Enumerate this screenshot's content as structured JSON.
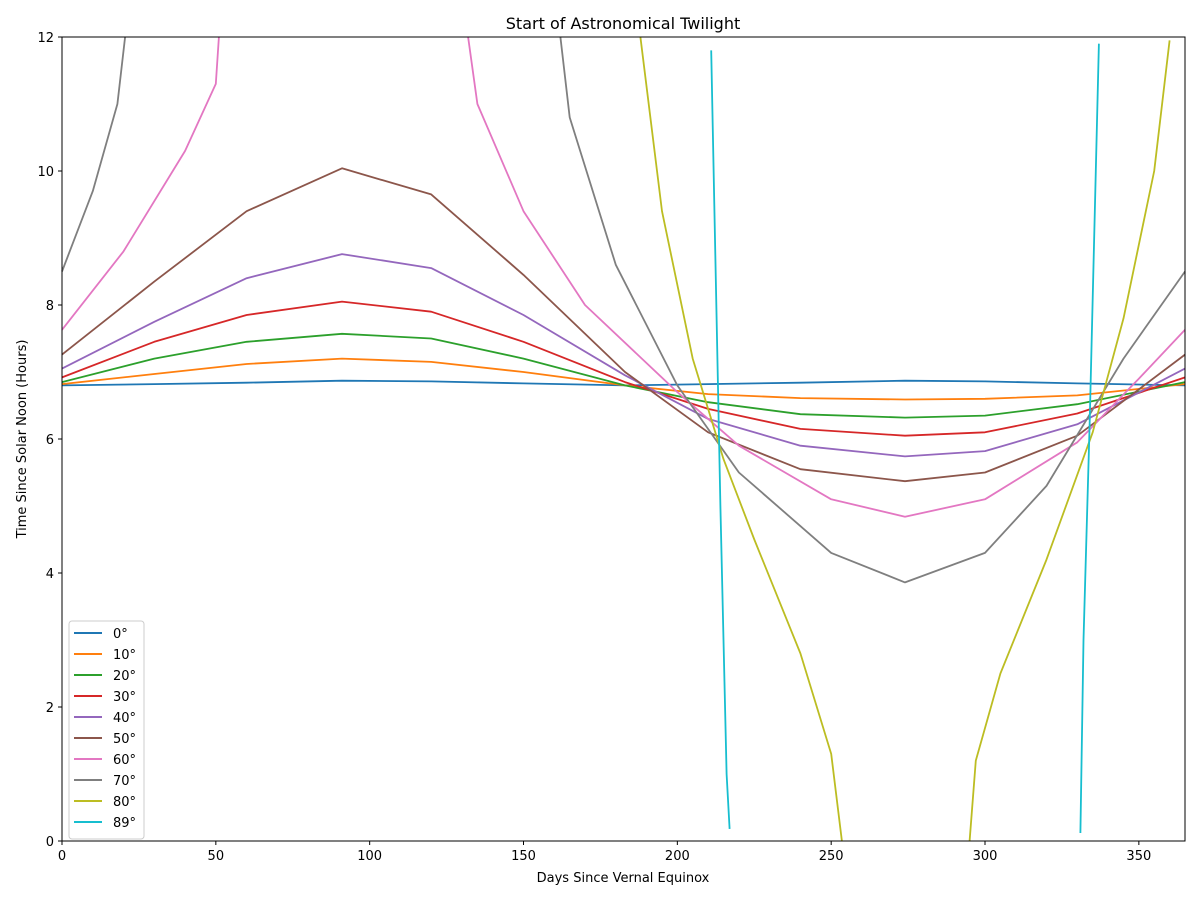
{
  "chart_data": {
    "type": "line",
    "title": "Start of Astronomical Twilight",
    "xlabel": "Days Since Vernal Equinox",
    "ylabel": "Time Since Solar Noon (Hours)",
    "xlim": [
      0,
      365
    ],
    "ylim": [
      0,
      12
    ],
    "x_ticks": [
      0,
      50,
      100,
      150,
      200,
      250,
      300,
      350
    ],
    "y_ticks": [
      0,
      2,
      4,
      6,
      8,
      10,
      12
    ],
    "grid": false,
    "legend_position": "lower-left",
    "series": [
      {
        "name": "0°",
        "color": "#1f77b4",
        "x": [
          0,
          30,
          60,
          91,
          120,
          150,
          183,
          210,
          240,
          274,
          300,
          330,
          365
        ],
        "y": [
          6.8,
          6.82,
          6.84,
          6.87,
          6.86,
          6.83,
          6.8,
          6.82,
          6.84,
          6.87,
          6.86,
          6.83,
          6.8
        ]
      },
      {
        "name": "10°",
        "color": "#ff7f0e",
        "x": [
          0,
          30,
          60,
          91,
          120,
          150,
          183,
          210,
          240,
          274,
          300,
          330,
          365
        ],
        "y": [
          6.82,
          6.97,
          7.12,
          7.2,
          7.15,
          7.0,
          6.8,
          6.67,
          6.61,
          6.59,
          6.6,
          6.65,
          6.82
        ]
      },
      {
        "name": "20°",
        "color": "#2ca02c",
        "x": [
          0,
          30,
          60,
          91,
          120,
          150,
          183,
          210,
          240,
          274,
          300,
          330,
          365
        ],
        "y": [
          6.85,
          7.2,
          7.45,
          7.57,
          7.5,
          7.2,
          6.8,
          6.55,
          6.37,
          6.32,
          6.35,
          6.52,
          6.85
        ]
      },
      {
        "name": "30°",
        "color": "#d62728",
        "x": [
          0,
          30,
          60,
          91,
          120,
          150,
          183,
          210,
          240,
          274,
          300,
          330,
          365
        ],
        "y": [
          6.92,
          7.45,
          7.85,
          8.05,
          7.9,
          7.45,
          6.85,
          6.45,
          6.15,
          6.05,
          6.1,
          6.38,
          6.92
        ]
      },
      {
        "name": "40°",
        "color": "#9467bd",
        "x": [
          0,
          30,
          60,
          91,
          120,
          150,
          183,
          210,
          240,
          274,
          300,
          330,
          365
        ],
        "y": [
          7.05,
          7.75,
          8.4,
          8.76,
          8.55,
          7.85,
          6.95,
          6.3,
          5.9,
          5.74,
          5.82,
          6.22,
          7.05
        ]
      },
      {
        "name": "50°",
        "color": "#8c564b",
        "x": [
          0,
          30,
          60,
          91,
          120,
          150,
          183,
          210,
          240,
          274,
          300,
          330,
          365
        ],
        "y": [
          7.26,
          8.35,
          9.4,
          10.04,
          9.65,
          8.45,
          7.0,
          6.1,
          5.55,
          5.37,
          5.5,
          6.05,
          7.26
        ]
      },
      {
        "name": "60°",
        "color": "#e377c2",
        "x": [
          0,
          20,
          40,
          50,
          51,
          null,
          132,
          135,
          150,
          170,
          200,
          220,
          250,
          274,
          300,
          330,
          350,
          365
        ],
        "y": [
          7.63,
          8.8,
          10.3,
          11.3,
          12.0,
          null,
          12.0,
          11.0,
          9.4,
          8.0,
          6.7,
          5.9,
          5.1,
          4.84,
          5.1,
          5.95,
          6.9,
          7.63
        ]
      },
      {
        "name": "70°",
        "color": "#7f7f7f",
        "x": [
          0,
          10,
          18,
          20.5,
          null,
          162,
          165,
          180,
          200,
          220,
          250,
          274,
          300,
          320,
          345,
          365
        ],
        "y": [
          8.5,
          9.7,
          11.0,
          12.0,
          null,
          12.0,
          10.8,
          8.6,
          6.8,
          5.5,
          4.3,
          3.86,
          4.3,
          5.3,
          7.2,
          8.5
        ]
      },
      {
        "name": "80°",
        "color": "#bcbd22",
        "x": [
          188,
          195,
          205,
          215,
          225,
          240,
          250,
          253.5,
          null,
          295,
          297,
          305,
          320,
          335,
          345,
          355,
          360
        ],
        "y": [
          12.0,
          9.4,
          7.2,
          5.7,
          4.5,
          2.8,
          1.3,
          0.0,
          null,
          0.0,
          1.2,
          2.5,
          4.2,
          6.1,
          7.8,
          10.0,
          11.95
        ]
      },
      {
        "name": "89°",
        "color": "#17becf",
        "x": [
          211,
          212,
          214,
          216,
          217,
          null,
          331,
          332,
          334,
          336,
          337
        ],
        "y": [
          11.8,
          9.5,
          5.0,
          1.0,
          0.18,
          null,
          0.12,
          3.0,
          6.2,
          10.0,
          11.9
        ]
      }
    ]
  }
}
